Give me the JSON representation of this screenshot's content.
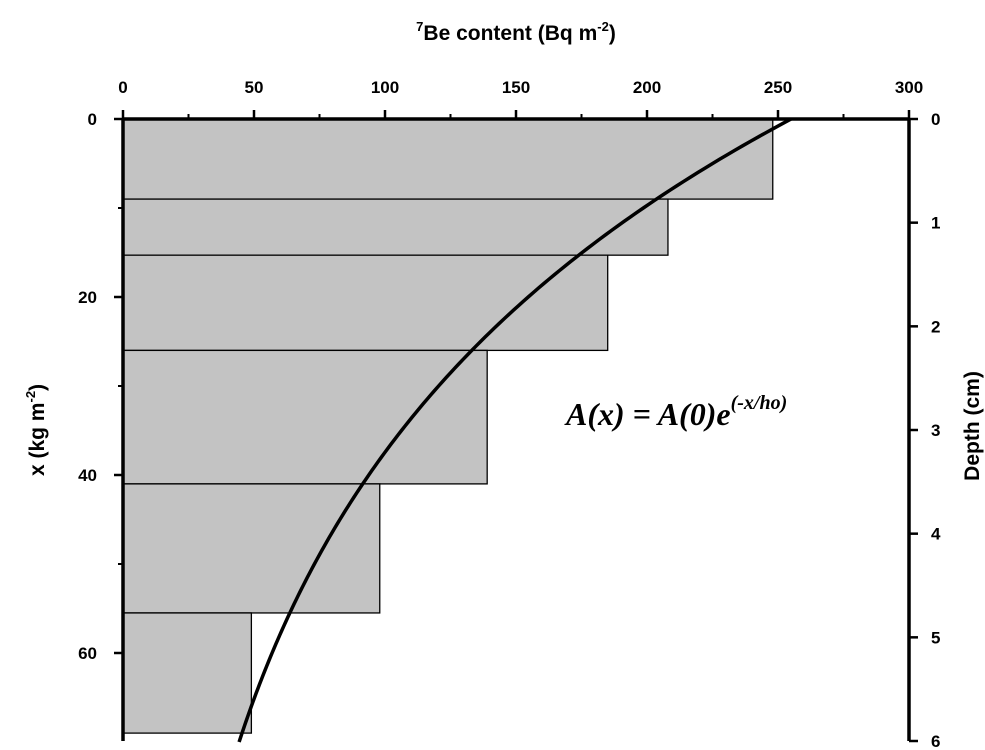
{
  "chart_data": {
    "type": "bar",
    "orientation": "horizontal-step",
    "title": "",
    "top_axis": {
      "label": "Be content (Bq m",
      "label_pre_sup": "7",
      "label_exp": "-2",
      "label_close": ")",
      "range": [
        0,
        300
      ],
      "ticks": [
        0,
        50,
        100,
        150,
        200,
        250,
        300
      ]
    },
    "left_axis": {
      "label": "x (kg m",
      "label_exp": "-2",
      "label_close": ")",
      "range": [
        0,
        70
      ],
      "ticks": [
        0,
        20,
        40,
        60
      ]
    },
    "right_axis": {
      "label": "Depth (cm)",
      "range": [
        0,
        6
      ],
      "ticks": [
        0,
        1,
        2,
        3,
        4,
        5,
        6
      ]
    },
    "bars": [
      {
        "x_top": 0,
        "x_bottom": 9,
        "value": 248
      },
      {
        "x_top": 9,
        "x_bottom": 15.3,
        "value": 208
      },
      {
        "x_top": 15.3,
        "x_bottom": 26,
        "value": 185
      },
      {
        "x_top": 26,
        "x_bottom": 41,
        "value": 139
      },
      {
        "x_top": 41,
        "x_bottom": 55.5,
        "value": 98
      },
      {
        "x_top": 55.5,
        "x_bottom": 69,
        "value": 49
      }
    ],
    "fit_curve": {
      "equation_base": "A(x) = A(0)e",
      "equation_exp": "(-x/ho)",
      "a0": 255,
      "h0": 40,
      "x_range": [
        0,
        70
      ]
    },
    "grid": false,
    "legend": "none"
  }
}
